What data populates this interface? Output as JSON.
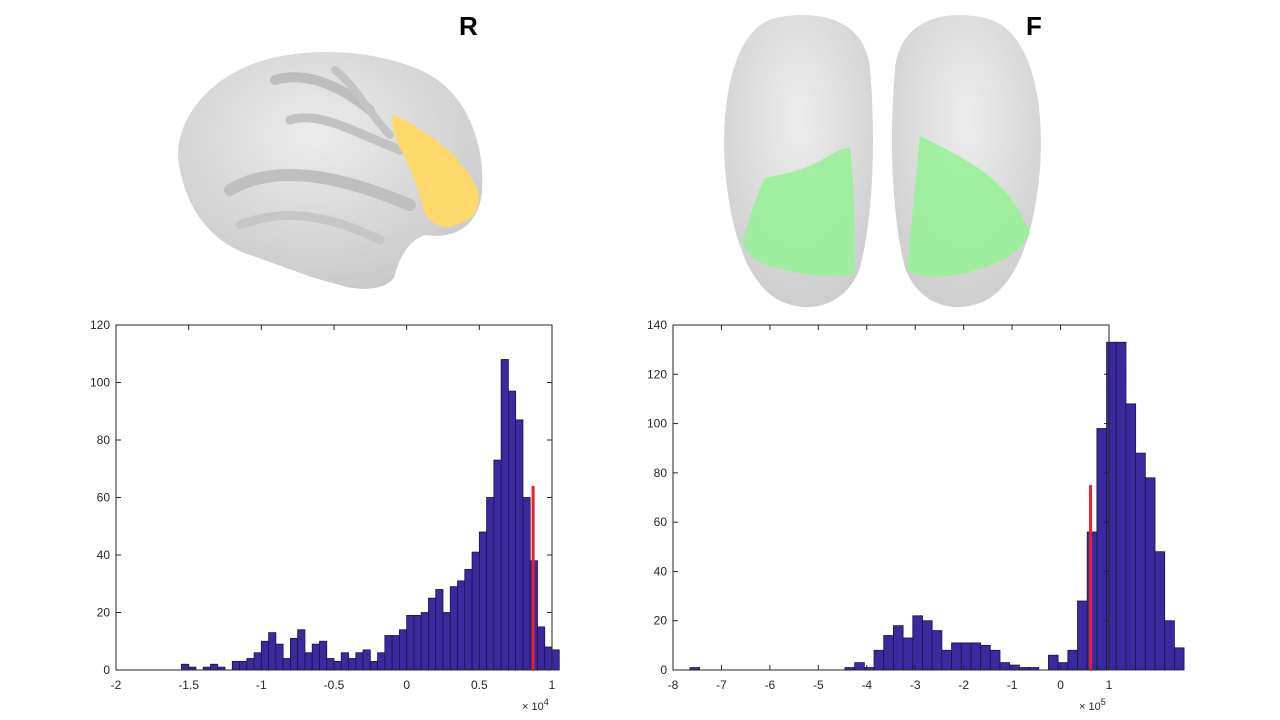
{
  "panels": {
    "left_letter": "R",
    "right_letter": "F"
  },
  "colors": {
    "bar_fill": "#3a2a9e",
    "bar_edge": "#1a124f",
    "marker": "#e8202a",
    "region_left": "#ffd966",
    "region_right": "#99f099",
    "brain": "#e6e6e6"
  },
  "chart_data": [
    {
      "type": "bar",
      "histogram": true,
      "xlim": [
        -2,
        1
      ],
      "ylim": [
        0,
        120
      ],
      "xticks": [
        -2,
        -1.5,
        -1,
        -0.5,
        0,
        0.5,
        1
      ],
      "xtick_labels": [
        "-2",
        "-1.5",
        "-1",
        "-0.5",
        "0",
        "0.5",
        "1"
      ],
      "yticks": [
        0,
        20,
        40,
        60,
        80,
        100,
        120
      ],
      "ytick_labels": [
        "0",
        "20",
        "40",
        "60",
        "80",
        "100",
        "120"
      ],
      "x_multiplier_base": "× 10",
      "x_multiplier_exp": "4",
      "bin_start": -1.55,
      "bin_width": 0.05,
      "values": [
        2,
        1,
        0,
        1,
        2,
        1,
        0,
        3,
        3,
        4,
        6,
        10,
        13,
        9,
        4,
        11,
        14,
        6,
        9,
        10,
        4,
        3,
        6,
        4,
        6,
        7,
        3,
        6,
        12,
        12,
        14,
        19,
        19,
        20,
        25,
        28,
        20,
        29,
        31,
        35,
        41,
        48,
        60,
        73,
        108,
        97,
        87,
        60,
        38,
        15,
        8,
        7
      ],
      "marker_x": 0.87,
      "marker_height": 64
    },
    {
      "type": "bar",
      "histogram": true,
      "xlim": [
        -8,
        1
      ],
      "ylim": [
        0,
        140
      ],
      "xticks": [
        -8,
        -7,
        -6,
        -5,
        -4,
        -3,
        -2,
        -1,
        0,
        1
      ],
      "xtick_labels": [
        "-8",
        "-7",
        "-6",
        "-5",
        "-4",
        "-3",
        "-2",
        "-1",
        "0",
        "1"
      ],
      "yticks": [
        0,
        20,
        40,
        60,
        80,
        100,
        120,
        140
      ],
      "ytick_labels": [
        "0",
        "20",
        "40",
        "60",
        "80",
        "100",
        "120",
        "140"
      ],
      "x_multiplier_base": "× 10",
      "x_multiplier_exp": "5",
      "bin_start": -7.65,
      "bin_width": 0.2,
      "values": [
        1,
        0,
        0,
        0,
        0,
        0,
        0,
        0,
        0,
        0,
        0,
        0,
        0,
        0,
        0,
        0,
        1,
        3,
        1,
        8,
        14,
        18,
        13,
        22,
        20,
        16,
        8,
        11,
        11,
        11,
        10,
        8,
        3,
        2,
        1,
        1,
        0,
        6,
        3,
        8,
        28,
        56,
        98,
        133,
        133,
        108,
        88,
        78,
        48,
        20,
        9
      ],
      "marker_x": 0.62,
      "marker_height": 75
    }
  ]
}
